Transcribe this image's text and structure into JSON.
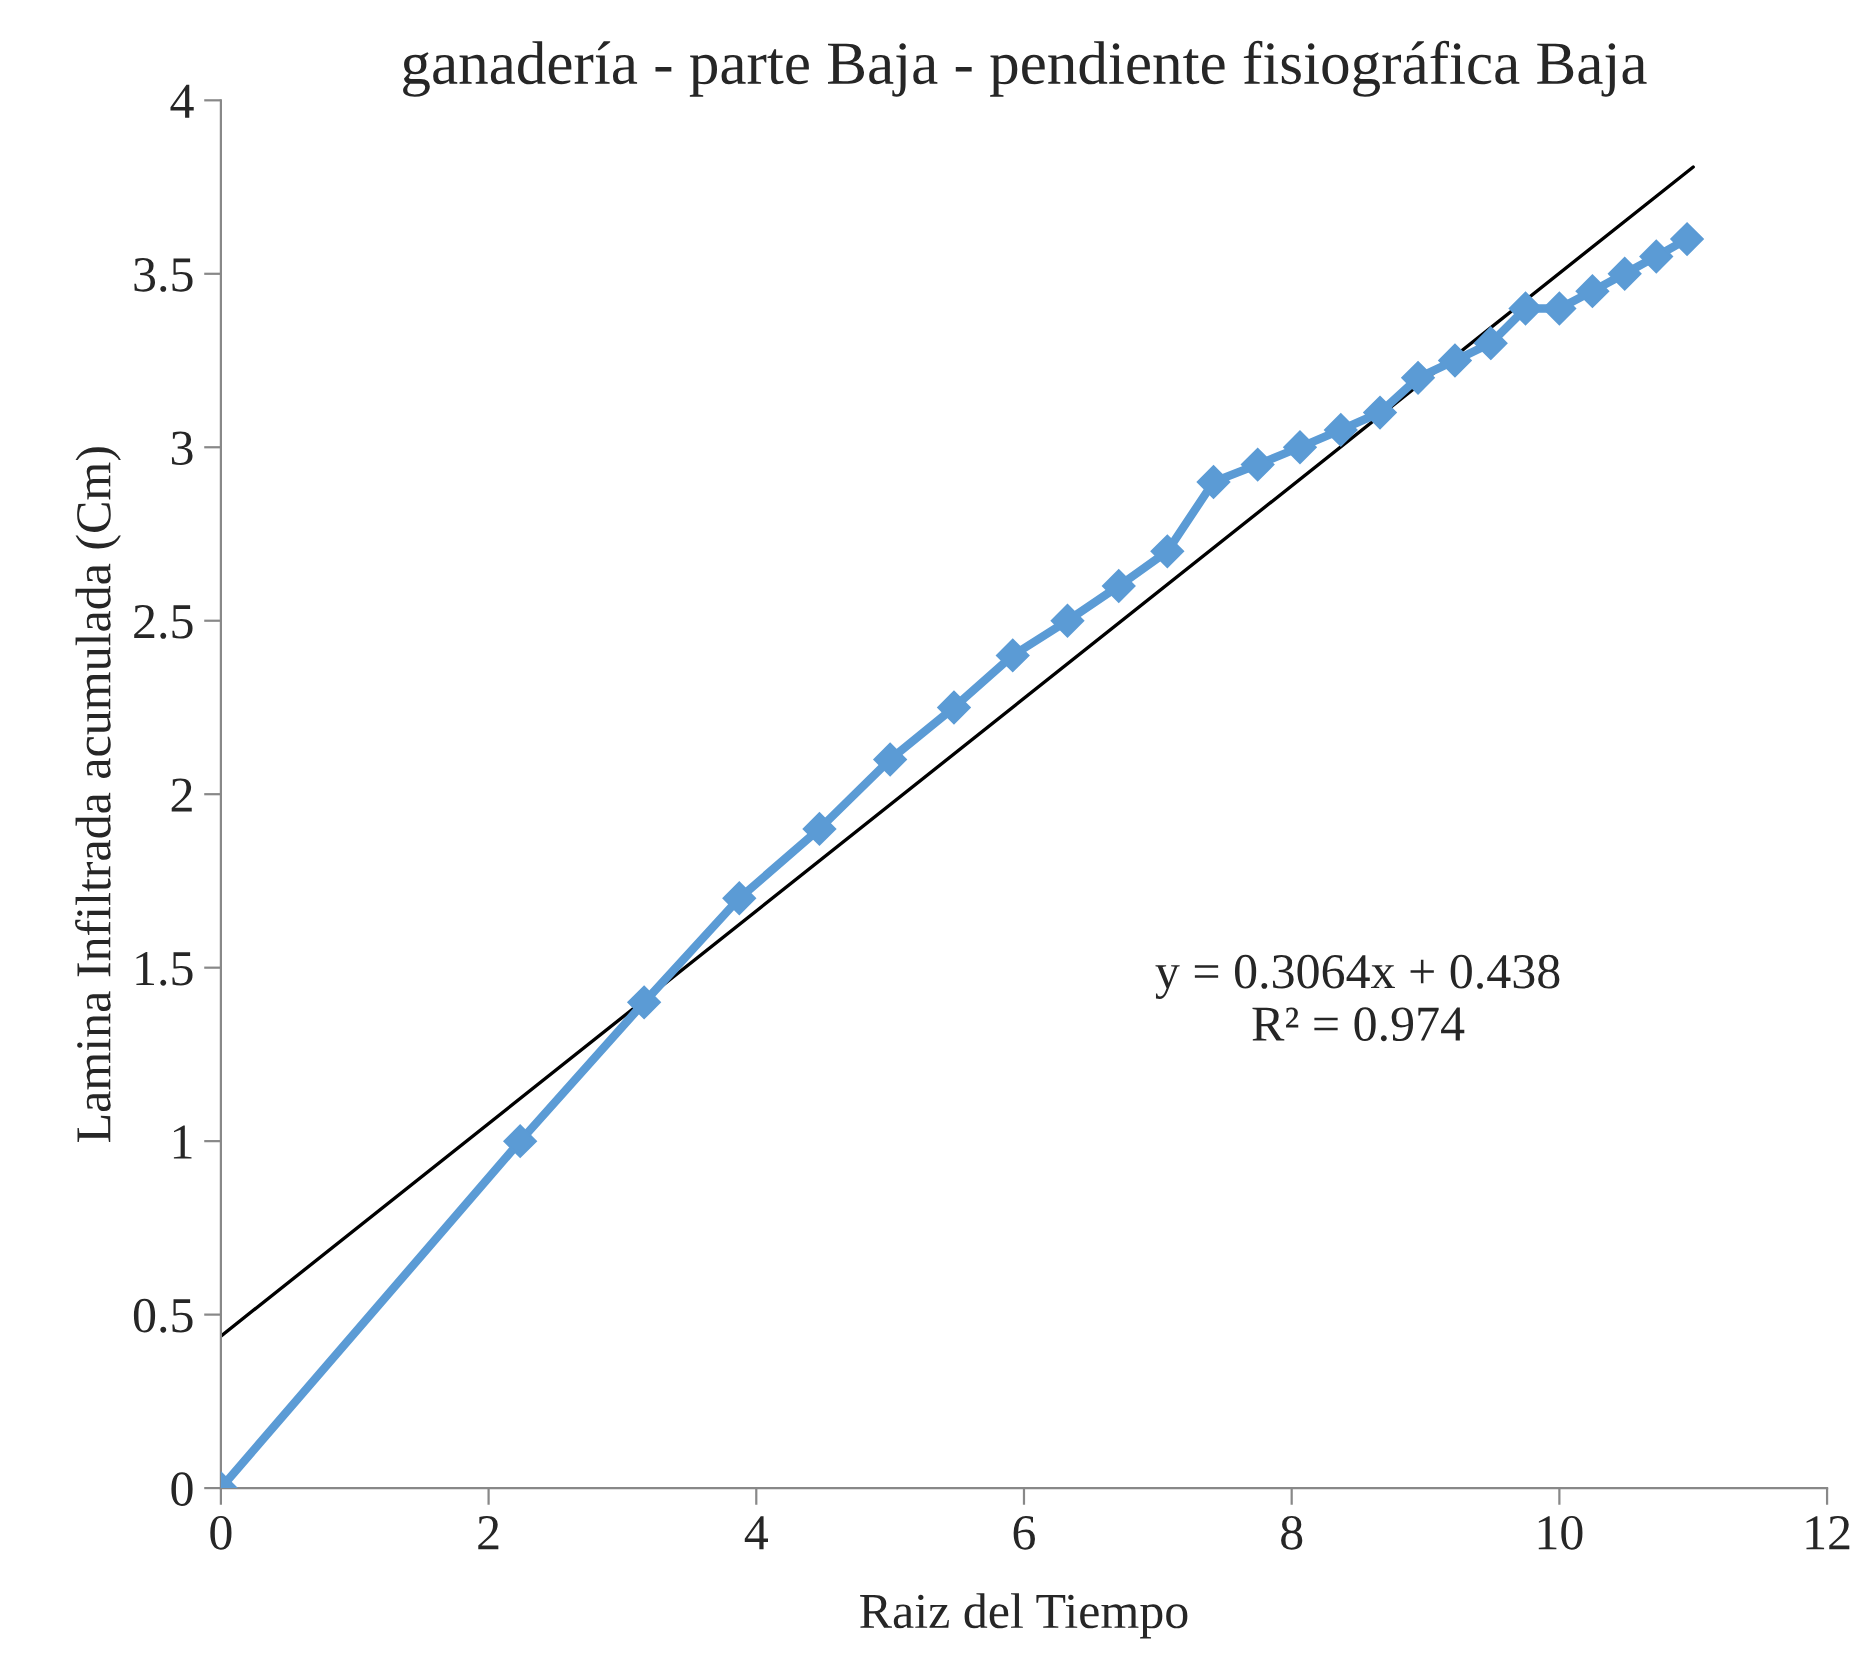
{
  "chart_data": {
    "type": "line",
    "title": "ganadería - parte Baja - pendiente fisiográfica Baja",
    "xlabel": "Raiz del Tiempo",
    "ylabel": "Lamina Infiltrada acumulada (Cm)",
    "series": [
      {
        "color": "#5b9bd5",
        "marker": "diamond",
        "x": [
          0,
          2.236,
          3.162,
          3.873,
          4.472,
          5,
          5.477,
          5.916,
          6.325,
          6.708,
          7.071,
          7.416,
          7.746,
          8.062,
          8.367,
          8.66,
          8.944,
          9.22,
          9.487,
          9.747,
          10,
          10.247,
          10.488,
          10.724,
          10.954
        ],
        "values": [
          0,
          1,
          1.4,
          1.7,
          1.9,
          2.1,
          2.25,
          2.4,
          2.5,
          2.6,
          2.7,
          2.9,
          2.95,
          3.0,
          3.05,
          3.1,
          3.2,
          3.25,
          3.3,
          3.4,
          3.4,
          3.45,
          3.5,
          3.55,
          3.6
        ]
      },
      {
        "color": "#000000",
        "marker": "none",
        "x": [
          0,
          11
        ],
        "values": [
          0.438,
          3.808
        ]
      }
    ],
    "annotations": [
      "y = 0.3064x + 0.438\nR² = 0.974"
    ],
    "xlim": [
      0,
      12
    ],
    "xticks": [
      0,
      2,
      4,
      6,
      8,
      10,
      12
    ],
    "ylim": [
      0,
      4
    ],
    "yticks": [
      0,
      0.5,
      1,
      1.5,
      2,
      2.5,
      3,
      3.5,
      4
    ],
    "grid": false,
    "legend": false
  }
}
